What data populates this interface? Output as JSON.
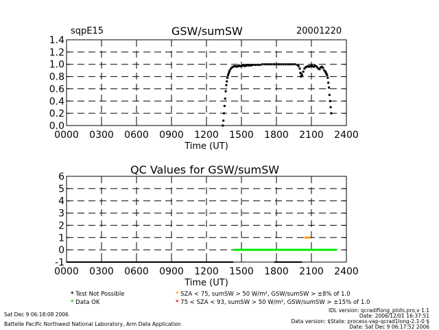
{
  "header": {
    "site": "sqpE15",
    "title": "GSW/sumSW",
    "date": "20001220"
  },
  "panel2": {
    "title": "QC Values for GSW/sumSW"
  },
  "legend": {
    "items": [
      {
        "label": "Test Not Possible",
        "color": "#000000"
      },
      {
        "label": "Data OK",
        "color": "#00cc00"
      },
      {
        "label": "SZA < 75, sumSW > 50 W/m², GSW/sumSW > ±8% of 1.0",
        "color": "#ff9900"
      },
      {
        "label": "75 < SZA < 93, sumSW > 50 W/m², GSW/sumSW > ±15% of 1.0",
        "color": "#ff0000"
      }
    ]
  },
  "footer": {
    "left1": "Sat Dec  9 06:18:08 2006",
    "left2": "Battelle Pacific Northwest National Laboratory, Arm Data Application",
    "right1": "IDL version: qcradiflong_plots.pro,v 1.1",
    "right2": "Date: 2006/12/01 16:37:51",
    "right3": "Data version: $State: process-vap-qcrad1long-2.1-0 $",
    "right4": "Date: Sat Dec  9 06:17:52 2006"
  },
  "chart_data": [
    {
      "type": "scatter",
      "title": "GSW/sumSW",
      "xlabel": "Time (UT)",
      "ylabel": "",
      "xlim": [
        0,
        2400
      ],
      "ylim": [
        0,
        1.4
      ],
      "xticks": [
        "0000",
        "0300",
        "0600",
        "0900",
        "1200",
        "1500",
        "1800",
        "2100",
        "2400"
      ],
      "yticks": [
        "0.0",
        "0.2",
        "0.4",
        "0.6",
        "0.8",
        "1.0",
        "1.2",
        "1.4"
      ],
      "grid": true,
      "series": [
        {
          "color": "#000000",
          "points": [
            [
              1340,
              0.0
            ],
            [
              1345,
              0.08
            ],
            [
              1350,
              0.2
            ],
            [
              1355,
              0.32
            ],
            [
              1360,
              0.44
            ],
            [
              1365,
              0.56
            ],
            [
              1370,
              0.66
            ],
            [
              1375,
              0.72
            ],
            [
              1380,
              0.78
            ],
            [
              1385,
              0.82
            ],
            [
              1390,
              0.85
            ],
            [
              1395,
              0.88
            ],
            [
              1400,
              0.9
            ],
            [
              1410,
              0.93
            ],
            [
              1420,
              0.95
            ],
            [
              1430,
              0.96
            ],
            [
              1440,
              0.97
            ],
            [
              1450,
              0.97
            ],
            [
              1460,
              0.96
            ],
            [
              1470,
              0.97
            ],
            [
              1480,
              0.98
            ],
            [
              1490,
              0.97
            ],
            [
              1500,
              0.97
            ],
            [
              1510,
              0.98
            ],
            [
              1520,
              0.98
            ],
            [
              1530,
              0.97
            ],
            [
              1540,
              0.98
            ],
            [
              1550,
              0.99
            ],
            [
              1560,
              0.98
            ],
            [
              1570,
              0.99
            ],
            [
              1580,
              0.98
            ],
            [
              1590,
              0.99
            ],
            [
              1600,
              0.99
            ],
            [
              1620,
              0.99
            ],
            [
              1640,
              0.99
            ],
            [
              1660,
              0.99
            ],
            [
              1680,
              1.0
            ],
            [
              1700,
              1.0
            ],
            [
              1720,
              1.0
            ],
            [
              1740,
              1.0
            ],
            [
              1760,
              1.0
            ],
            [
              1780,
              1.0
            ],
            [
              1800,
              1.0
            ],
            [
              1820,
              1.0
            ],
            [
              1840,
              1.0
            ],
            [
              1860,
              1.0
            ],
            [
              1880,
              1.0
            ],
            [
              1900,
              1.0
            ],
            [
              1920,
              1.0
            ],
            [
              1940,
              1.0
            ],
            [
              1960,
              1.0
            ],
            [
              1980,
              0.99
            ],
            [
              1990,
              0.97
            ],
            [
              2000,
              0.93
            ],
            [
              2005,
              0.86
            ],
            [
              2010,
              0.8
            ],
            [
              2015,
              0.84
            ],
            [
              2020,
              0.82
            ],
            [
              2030,
              0.88
            ],
            [
              2040,
              0.93
            ],
            [
              2050,
              0.95
            ],
            [
              2060,
              0.96
            ],
            [
              2070,
              0.97
            ],
            [
              2080,
              0.96
            ],
            [
              2090,
              0.97
            ],
            [
              2100,
              0.98
            ],
            [
              2110,
              0.97
            ],
            [
              2120,
              0.96
            ],
            [
              2130,
              0.98
            ],
            [
              2140,
              0.97
            ],
            [
              2150,
              0.95
            ],
            [
              2160,
              0.93
            ],
            [
              2170,
              0.92
            ],
            [
              2180,
              0.95
            ],
            [
              2190,
              0.96
            ],
            [
              2200,
              0.94
            ],
            [
              2210,
              0.9
            ],
            [
              2220,
              0.88
            ],
            [
              2225,
              0.86
            ],
            [
              2230,
              0.84
            ],
            [
              2235,
              0.82
            ],
            [
              2240,
              0.78
            ],
            [
              2245,
              0.7
            ],
            [
              2250,
              0.62
            ],
            [
              2255,
              0.5
            ],
            [
              2260,
              0.4
            ],
            [
              2265,
              0.3
            ],
            [
              2270,
              0.2
            ]
          ]
        }
      ]
    },
    {
      "type": "line",
      "title": "QC Values for GSW/sumSW",
      "xlabel": "Time (UT)",
      "ylabel": "",
      "xlim": [
        0,
        2400
      ],
      "ylim": [
        -1,
        6
      ],
      "xticks": [
        "0000",
        "0300",
        "0600",
        "0900",
        "1200",
        "1500",
        "1800",
        "2100",
        "2400"
      ],
      "yticks": [
        "-1",
        "0",
        "1",
        "2",
        "3",
        "4",
        "5",
        "6"
      ],
      "grid": true,
      "series": [
        {
          "color": "#000000",
          "segments": [
            [
              0,
              1430,
              -1
            ],
            [
              1780,
              2020,
              -1
            ]
          ]
        },
        {
          "color": "#00ee00",
          "segments": [
            [
              1430,
              2320,
              0
            ]
          ]
        },
        {
          "color": "#ff9900",
          "segments": [
            [
              2040,
              2090,
              1
            ]
          ]
        }
      ]
    }
  ]
}
